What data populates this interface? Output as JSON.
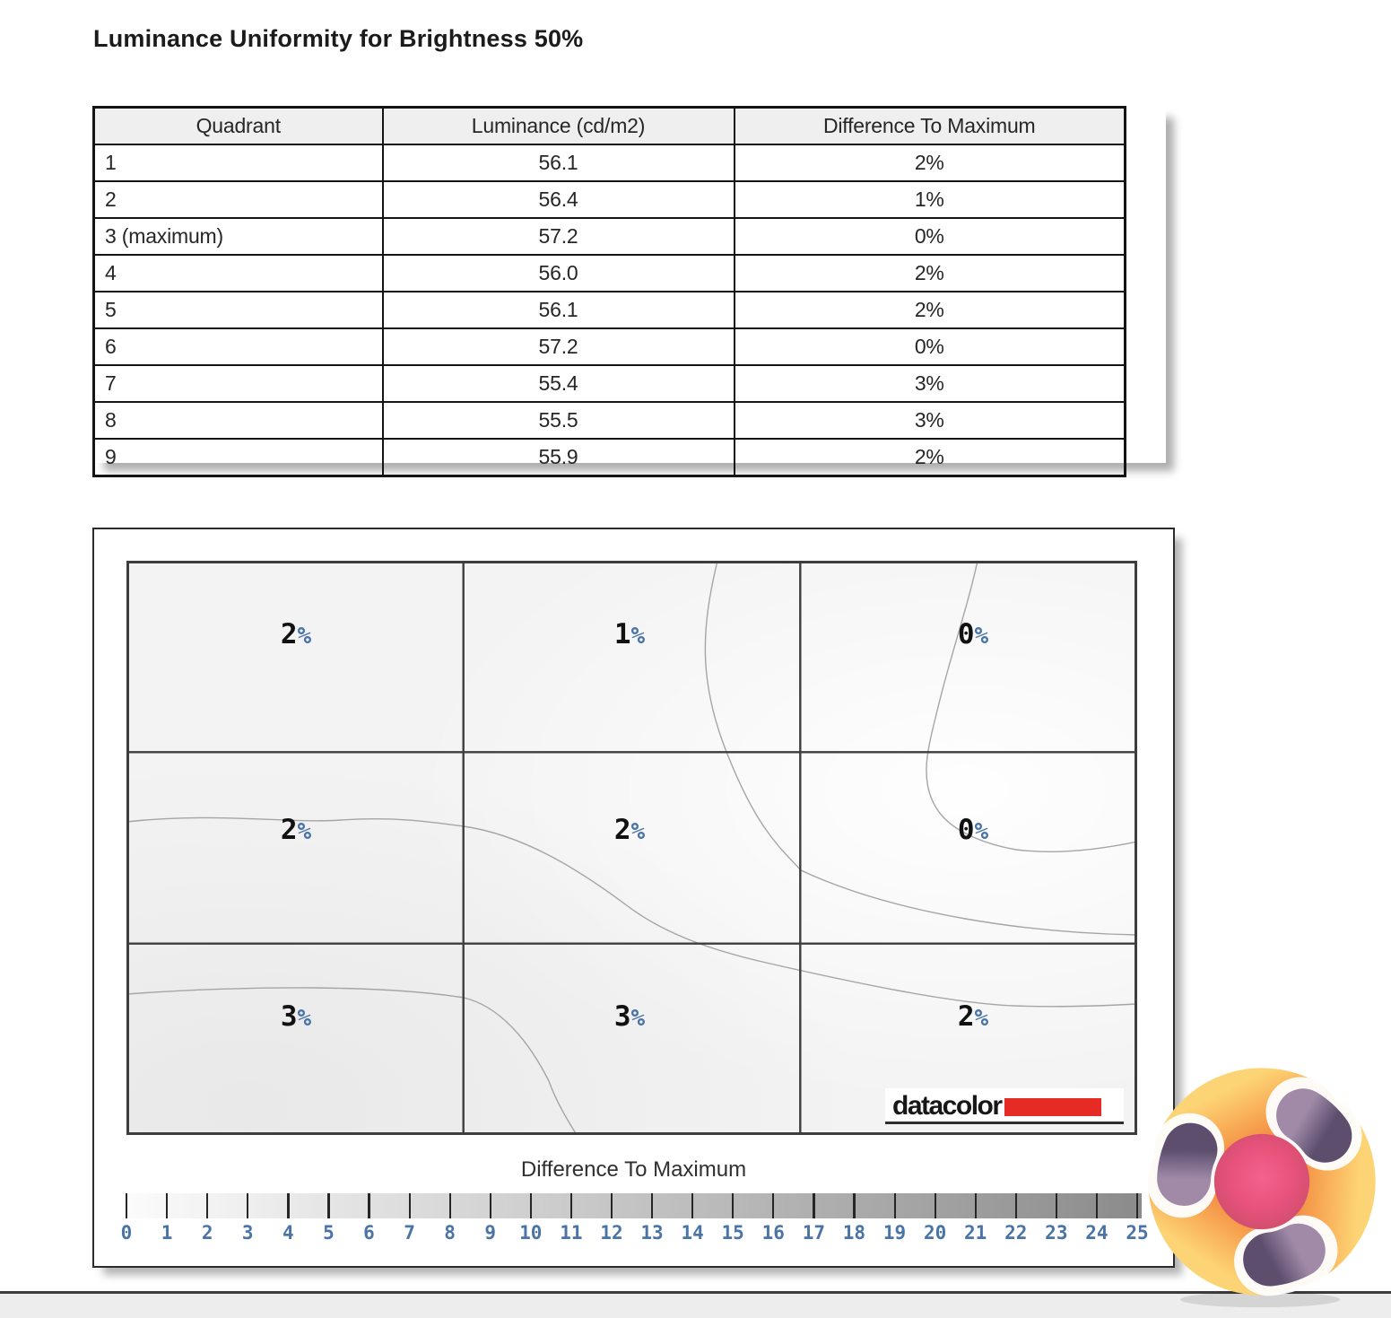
{
  "page": {
    "title": "Luminance Uniformity for Brightness 50%"
  },
  "table": {
    "columns": [
      "Quadrant",
      "Luminance (cd/m2)",
      "Difference To Maximum"
    ],
    "rows": [
      [
        "1",
        "56.1",
        "2%"
      ],
      [
        "2",
        "56.4",
        "1%"
      ],
      [
        "3 (maximum)",
        "57.2",
        "0%"
      ],
      [
        "4",
        "56.0",
        "2%"
      ],
      [
        "5",
        "56.1",
        "2%"
      ],
      [
        "6",
        "57.2",
        "0%"
      ],
      [
        "7",
        "55.4",
        "3%"
      ],
      [
        "8",
        "55.5",
        "3%"
      ],
      [
        "9",
        "55.9",
        "2%"
      ]
    ]
  },
  "uniformity_map": {
    "grid_values": [
      [
        "2",
        "1",
        "0"
      ],
      [
        "2",
        "2",
        "0"
      ],
      [
        "3",
        "3",
        "2"
      ]
    ],
    "percent_suffix": "%",
    "datacolor_label": "datacolor",
    "scale": {
      "title": "Difference To Maximum",
      "ticks": [
        "0",
        "1",
        "2",
        "3",
        "4",
        "5",
        "6",
        "7",
        "8",
        "9",
        "10",
        "11",
        "12",
        "13",
        "14",
        "15",
        "16",
        "17",
        "18",
        "19",
        "20",
        "21",
        "22",
        "23",
        "24",
        "25"
      ]
    }
  },
  "colors": {
    "percent_blue": "#4a74a6",
    "datacolor_red": "#e62b25",
    "scale_gradient_start": "#fcfcfc",
    "scale_gradient_end": "#8b8b8b"
  },
  "chart_data": [
    {
      "type": "table",
      "title": "Luminance Uniformity for Brightness 50%",
      "columns": [
        "Quadrant",
        "Luminance (cd/m2)",
        "Difference To Maximum"
      ],
      "rows": [
        [
          "1",
          56.1,
          "2%"
        ],
        [
          "2",
          56.4,
          "1%"
        ],
        [
          "3 (maximum)",
          57.2,
          "0%"
        ],
        [
          "4",
          56.0,
          "2%"
        ],
        [
          "5",
          56.1,
          "2%"
        ],
        [
          "6",
          57.2,
          "0%"
        ],
        [
          "7",
          55.4,
          "3%"
        ],
        [
          "8",
          55.5,
          "3%"
        ],
        [
          "9",
          55.9,
          "2%"
        ]
      ]
    },
    {
      "type": "heatmap",
      "title": "Difference To Maximum",
      "rows": 3,
      "cols": 3,
      "values_percent": [
        [
          2,
          1,
          0
        ],
        [
          2,
          2,
          0
        ],
        [
          3,
          3,
          2
        ]
      ],
      "legend": {
        "label": "Difference To Maximum",
        "min": 0,
        "max": 25,
        "tick_step": 1,
        "position": "bottom"
      },
      "grid": true,
      "contours": true
    }
  ]
}
